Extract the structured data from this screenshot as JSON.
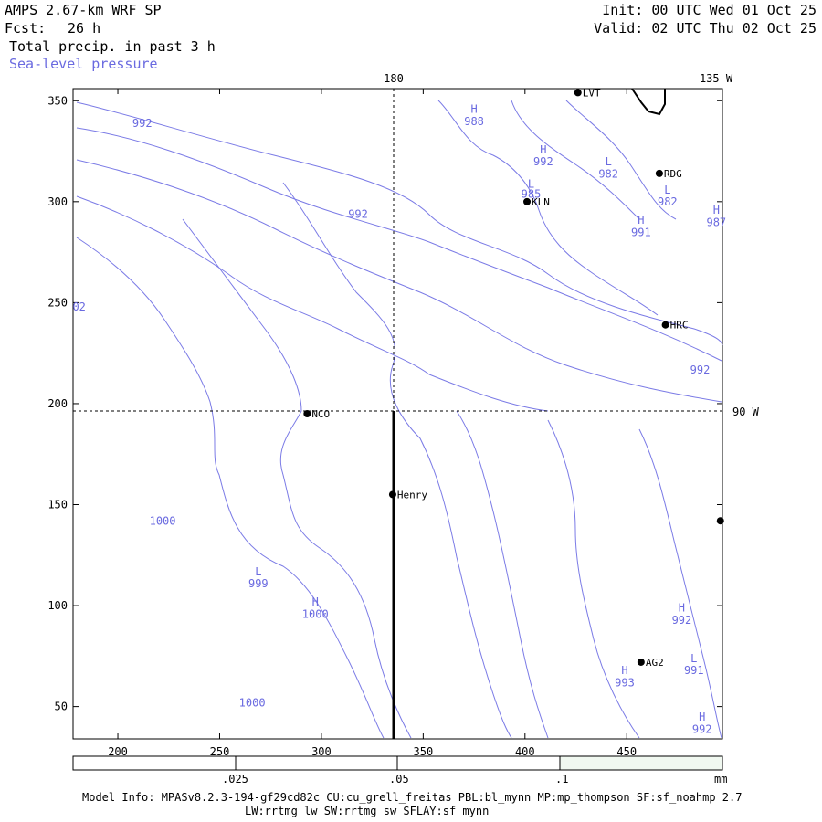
{
  "header": {
    "model_title": "AMPS 2.67-km WRF SP",
    "forecast_label": "Fcst:",
    "forecast_hours": "26 h",
    "field_primary": "Total precip. in past 3 h",
    "field_secondary": "Sea-level pressure",
    "init_time": "Init: 00 UTC Wed 01 Oct 25",
    "valid_time": "Valid: 02 UTC Thu 02 Oct 25"
  },
  "map": {
    "x_ticks": [
      "200",
      "250",
      "300",
      "350",
      "400",
      "450"
    ],
    "y_ticks": [
      "350",
      "300",
      "250",
      "200",
      "150",
      "100",
      "50"
    ],
    "x_range": [
      178,
      497
    ],
    "y_range": [
      34,
      356
    ],
    "meridian_labels": {
      "top_180": "180",
      "top_135w": "135 W",
      "right_90w": "90 W"
    },
    "stations": [
      {
        "name": "LVT",
        "x": 426,
        "y": 354
      },
      {
        "name": "RDG",
        "x": 466,
        "y": 314
      },
      {
        "name": "KLN",
        "x": 401,
        "y": 300
      },
      {
        "name": "HRC",
        "x": 469,
        "y": 239
      },
      {
        "name": "NCO",
        "x": 293,
        "y": 195
      },
      {
        "name": "Henry",
        "x": 335,
        "y": 155
      },
      {
        "name": "AG2",
        "x": 457,
        "y": 72
      },
      {
        "name": "",
        "x": 496,
        "y": 142
      }
    ],
    "pressure_labels": [
      {
        "text": "992",
        "x": 212,
        "y": 337
      },
      {
        "text": "H",
        "x": 375,
        "y": 344
      },
      {
        "text": "988",
        "x": 375,
        "y": 338
      },
      {
        "text": "H",
        "x": 409,
        "y": 324
      },
      {
        "text": "992",
        "x": 409,
        "y": 318
      },
      {
        "text": "L",
        "x": 441,
        "y": 318
      },
      {
        "text": "982",
        "x": 441,
        "y": 312
      },
      {
        "text": "L",
        "x": 403,
        "y": 307
      },
      {
        "text": "985",
        "x": 403,
        "y": 302
      },
      {
        "text": "L",
        "x": 470,
        "y": 304
      },
      {
        "text": "982",
        "x": 470,
        "y": 298
      },
      {
        "text": "992",
        "x": 318,
        "y": 292
      },
      {
        "text": "H",
        "x": 457,
        "y": 289
      },
      {
        "text": "991",
        "x": 457,
        "y": 283
      },
      {
        "text": "H",
        "x": 494,
        "y": 294
      },
      {
        "text": "987",
        "x": 494,
        "y": 288
      },
      {
        "text": "02",
        "x": 181,
        "y": 246
      },
      {
        "text": "992",
        "x": 486,
        "y": 215
      },
      {
        "text": "1000",
        "x": 222,
        "y": 140
      },
      {
        "text": "L",
        "x": 269,
        "y": 115
      },
      {
        "text": "999",
        "x": 269,
        "y": 109
      },
      {
        "text": "H",
        "x": 297,
        "y": 100
      },
      {
        "text": "1000",
        "x": 297,
        "y": 94
      },
      {
        "text": "H",
        "x": 477,
        "y": 97
      },
      {
        "text": "992",
        "x": 477,
        "y": 91
      },
      {
        "text": "L",
        "x": 483,
        "y": 72
      },
      {
        "text": "991",
        "x": 483,
        "y": 66
      },
      {
        "text": "H",
        "x": 449,
        "y": 66
      },
      {
        "text": "993",
        "x": 449,
        "y": 60
      },
      {
        "text": "1000",
        "x": 266,
        "y": 50
      },
      {
        "text": "H",
        "x": 487,
        "y": 43
      },
      {
        "text": "992",
        "x": 487,
        "y": 37
      }
    ]
  },
  "colorbar": {
    "labels": [
      ".025",
      ".05",
      ".1"
    ],
    "unit": "mm",
    "colors": [
      "#ffffff",
      "#ffffff",
      "#ffffff",
      "#f0f8f0"
    ]
  },
  "footer": {
    "line1": "Model Info: MPASv8.2.3-194-gf29cd82c CU:cu_grell_freitas PBL:bl_mynn MP:mp_thompson SF:sf_noahmp 2.7",
    "line2": "LW:rrtmg_lw SW:rrtmg_sw SFLAY:sf_mynn"
  },
  "colors": {
    "contour": "#7b7be6",
    "text_blue": "#6a6ae0",
    "station": "#000000"
  }
}
